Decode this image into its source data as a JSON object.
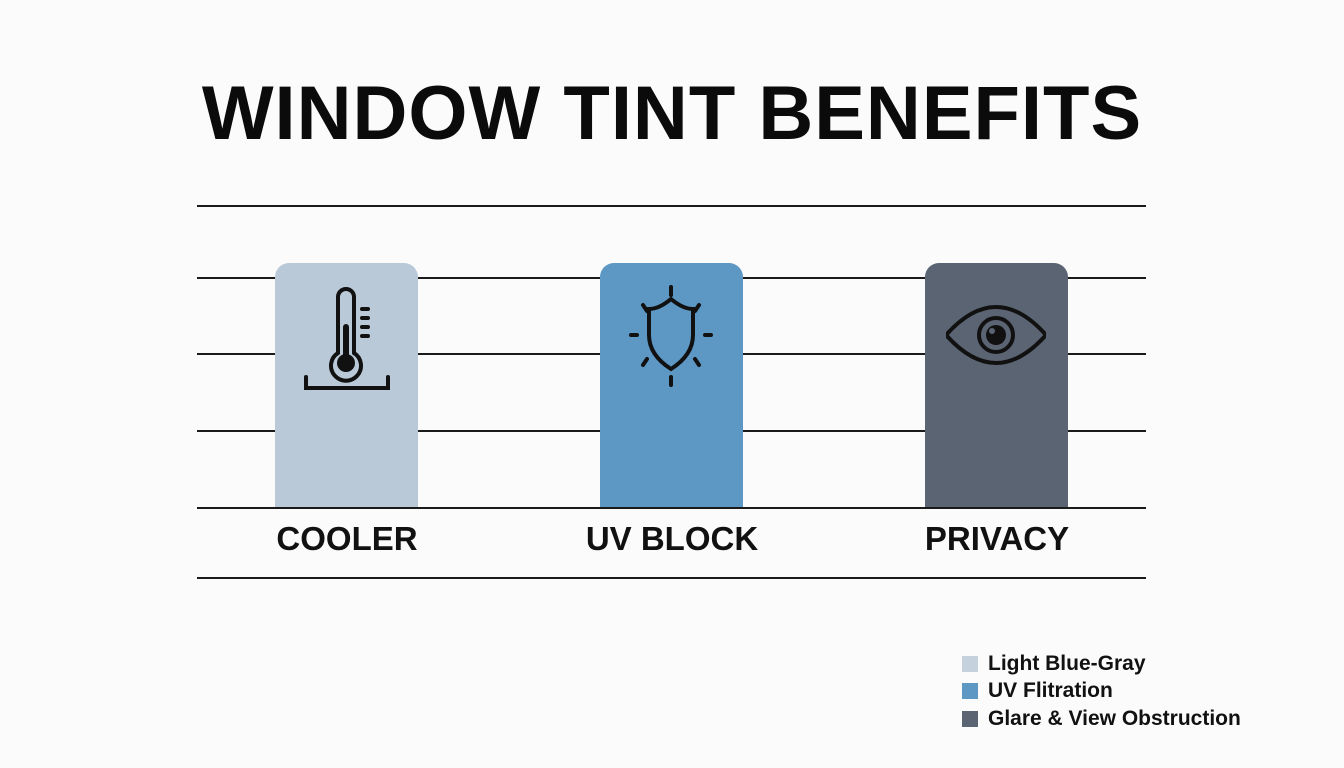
{
  "title": "WINDOW TINT BENEFITS",
  "benefits": [
    {
      "label": "COOLER",
      "icon": "thermometer-icon",
      "color": "#b9c9d7"
    },
    {
      "label": "UV BLOCK",
      "icon": "shield-sun-icon",
      "color": "#5d97c4"
    },
    {
      "label": "PRIVACY",
      "icon": "eye-icon",
      "color": "#5b6472"
    }
  ],
  "legend": [
    {
      "label": "Light Blue-Gray",
      "color": "#c5d2de"
    },
    {
      "label": "UV Flitration",
      "color": "#5d97c4"
    },
    {
      "label": "Glare & View Obstruction",
      "color": "#5b6472"
    }
  ]
}
